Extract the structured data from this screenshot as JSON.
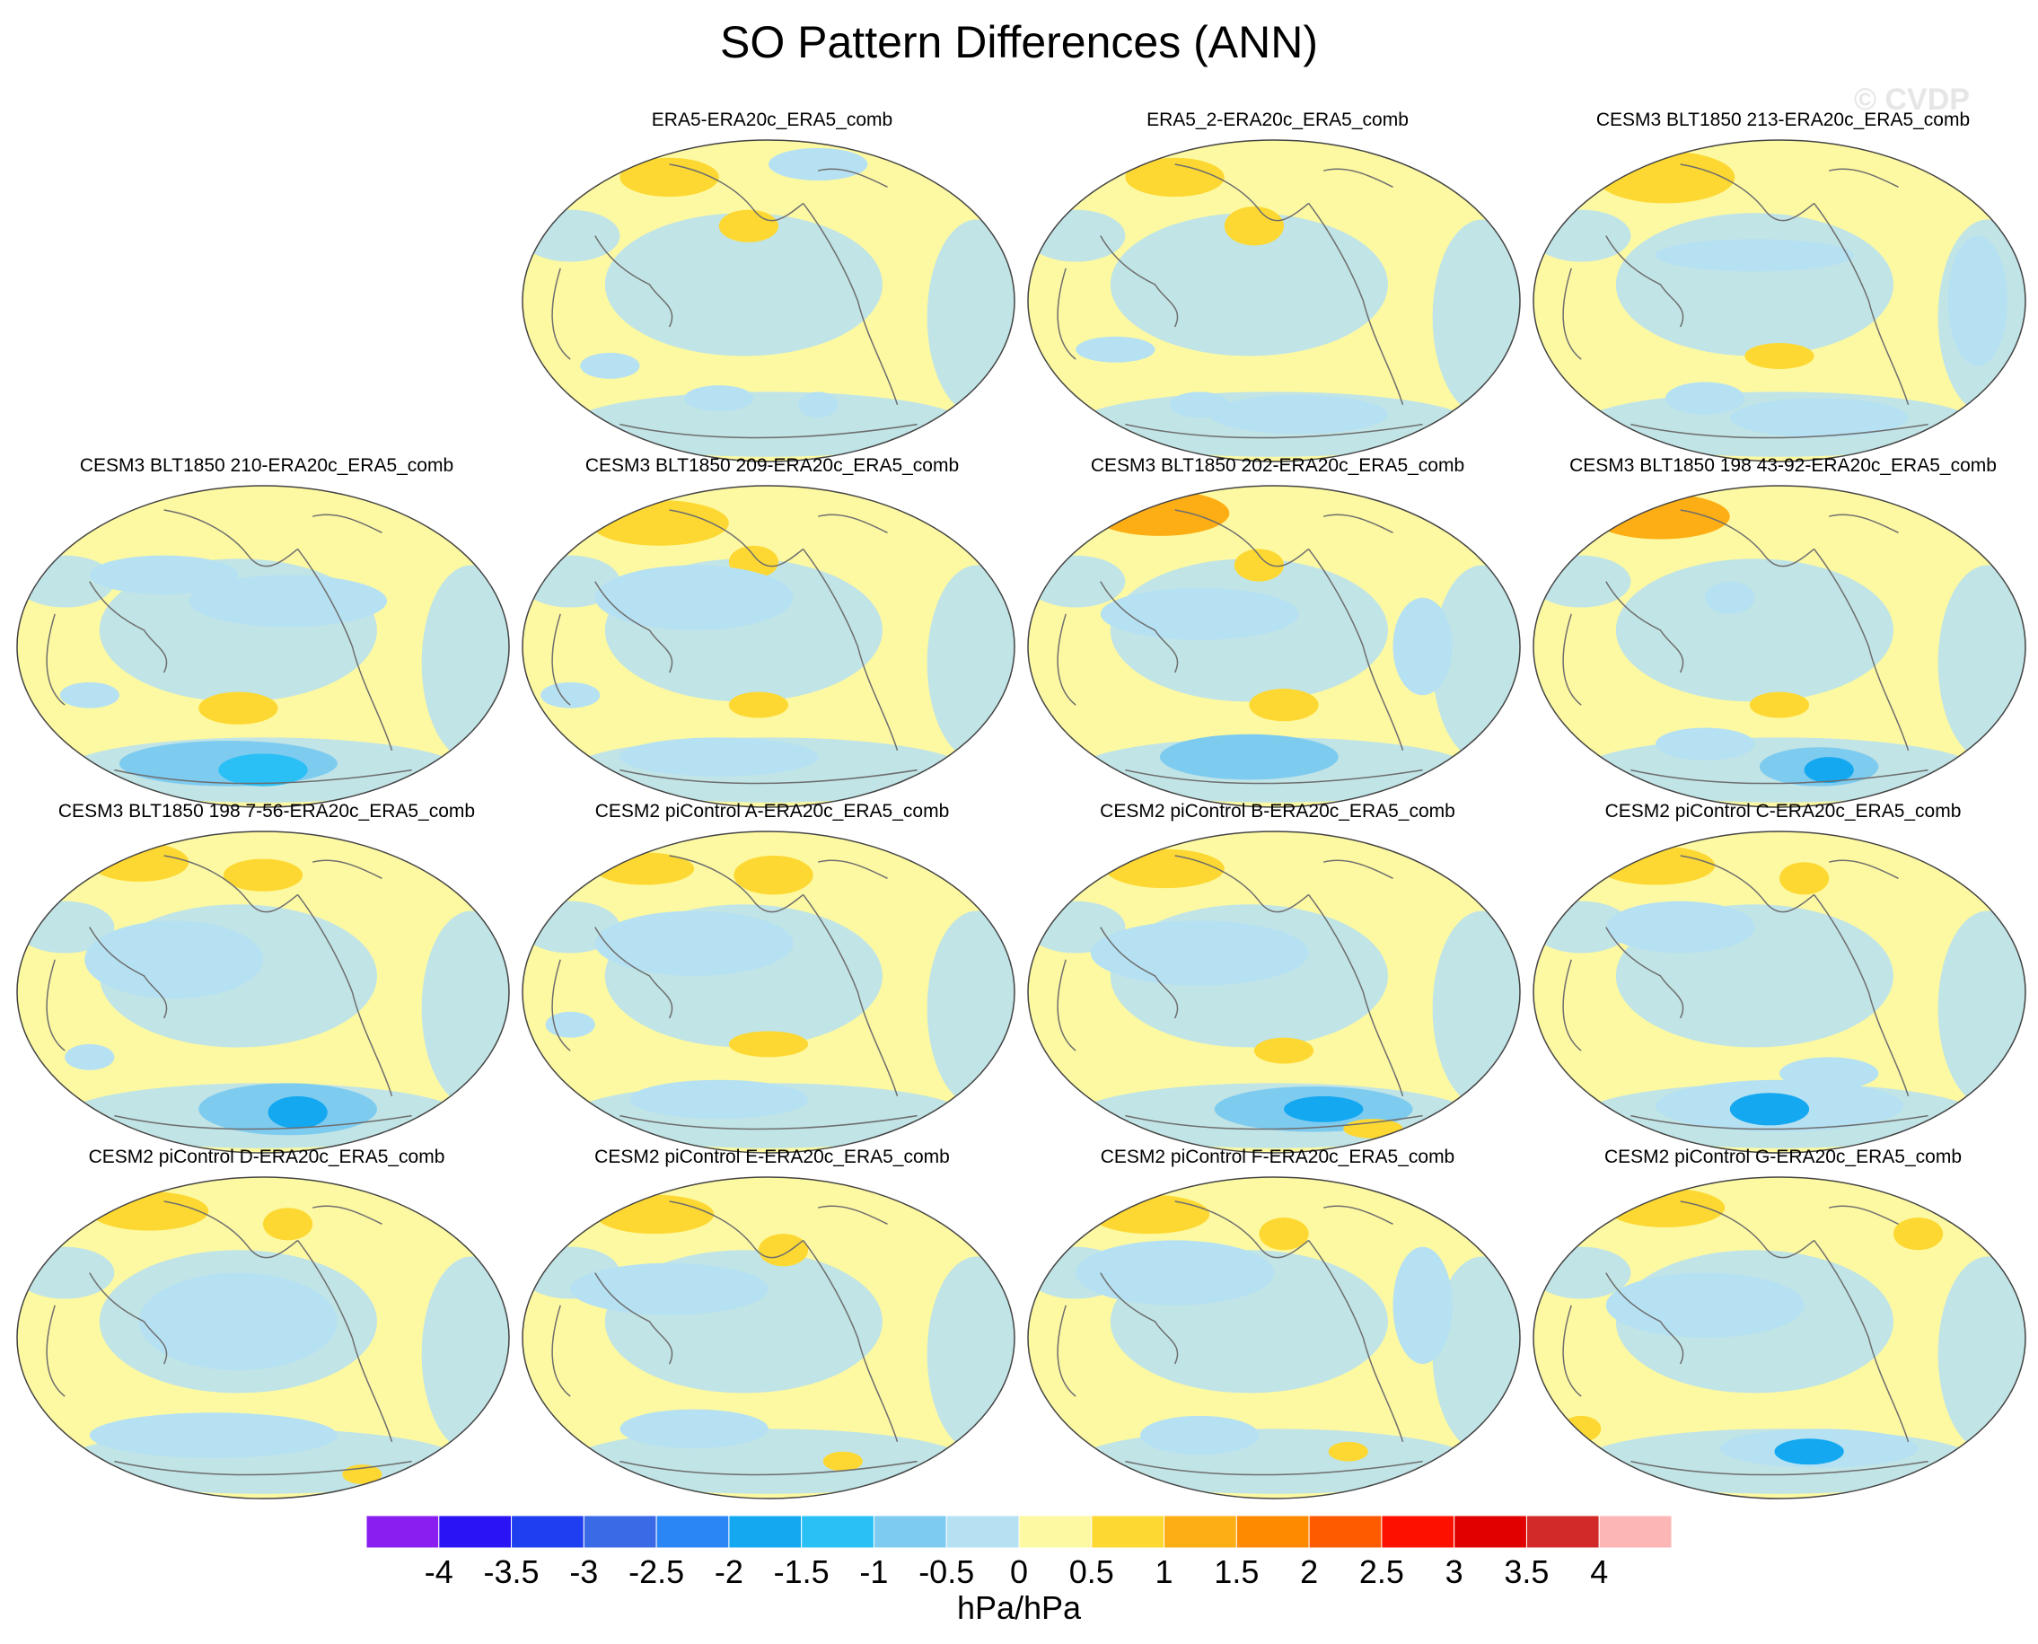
{
  "title": "SO Pattern Differences (ANN)",
  "watermark": "© CVDP",
  "panels": [
    {
      "label": "",
      "empty": true
    },
    {
      "label": "ERA5-ERA20c_ERA5_comb"
    },
    {
      "label": "ERA5_2-ERA20c_ERA5_comb"
    },
    {
      "label": "CESM3 BLT1850 213-ERA20c_ERA5_comb"
    },
    {
      "label": "CESM3 BLT1850 210-ERA20c_ERA5_comb"
    },
    {
      "label": "CESM3 BLT1850 209-ERA20c_ERA5_comb"
    },
    {
      "label": "CESM3 BLT1850 202-ERA20c_ERA5_comb"
    },
    {
      "label": "CESM3 BLT1850 198 43-92-ERA20c_ERA5_comb"
    },
    {
      "label": "CESM3 BLT1850 198 7-56-ERA20c_ERA5_comb"
    },
    {
      "label": "CESM2 piControl A-ERA20c_ERA5_comb"
    },
    {
      "label": "CESM2 piControl B-ERA20c_ERA5_comb"
    },
    {
      "label": "CESM2 piControl C-ERA20c_ERA5_comb"
    },
    {
      "label": "CESM2 piControl D-ERA20c_ERA5_comb"
    },
    {
      "label": "CESM2 piControl E-ERA20c_ERA5_comb"
    },
    {
      "label": "CESM2 piControl F-ERA20c_ERA5_comb"
    },
    {
      "label": "CESM2 piControl G-ERA20c_ERA5_comb"
    }
  ],
  "colorbar": {
    "units": "hPa/hPa",
    "tick_labels": [
      "-4",
      "-3.5",
      "-3",
      "-2.5",
      "-2",
      "-1.5",
      "-1",
      "-0.5",
      "0",
      "0.5",
      "1",
      "1.5",
      "2",
      "2.5",
      "3",
      "3.5",
      "4"
    ],
    "colors": [
      "#8a1df0",
      "#2a14f5",
      "#1e3ef0",
      "#3a6ae6",
      "#2a86f5",
      "#14a8f0",
      "#2ac0f5",
      "#7ecbf0",
      "#b6e1f2",
      "#fdf9a2",
      "#fdd832",
      "#fdae14",
      "#fe8a00",
      "#fe5a00",
      "#fe1000",
      "#e00000",
      "#d22a28",
      "#fdb6b6"
    ]
  },
  "map_colors": {
    "land_outline": "#6e6e6e",
    "background_positive": "#fdf9a2",
    "background_negative": "#b6e1f2"
  }
}
